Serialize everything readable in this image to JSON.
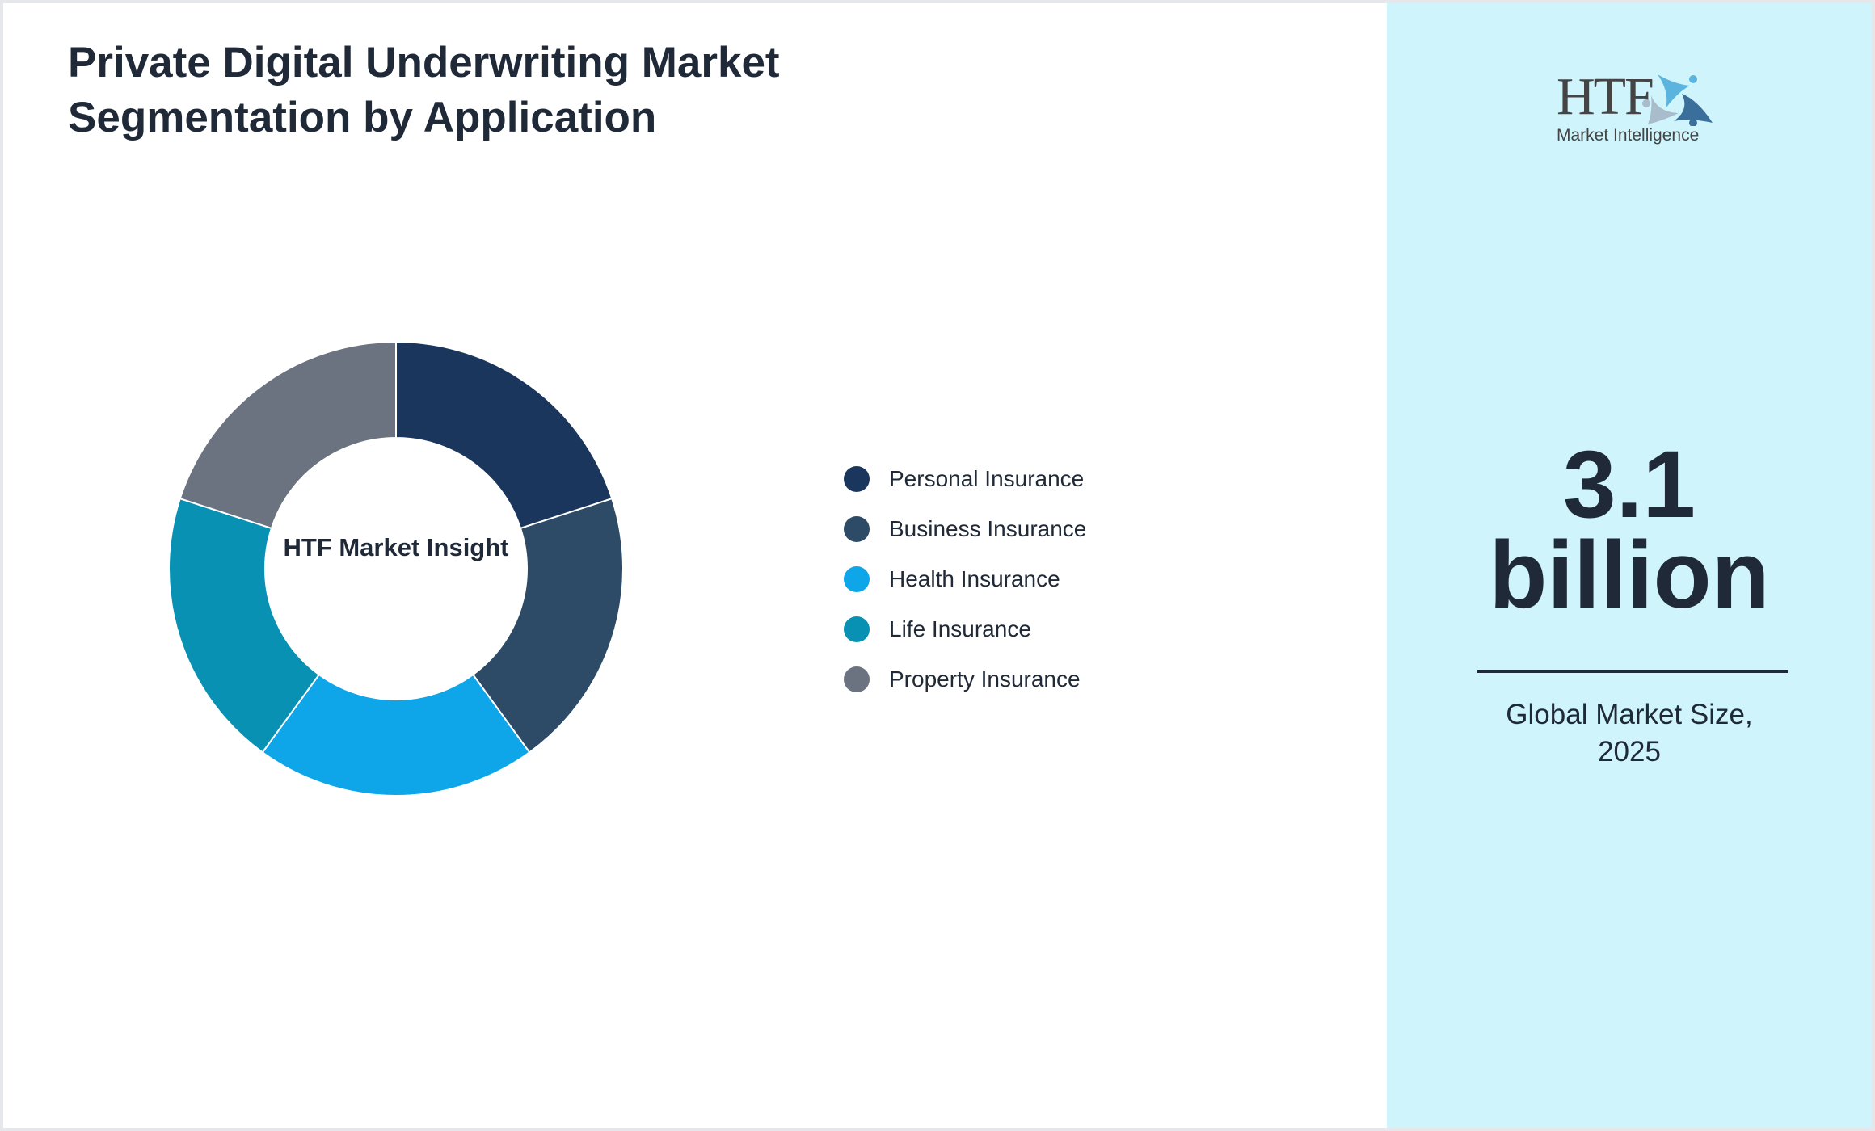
{
  "title": "Private Digital Underwriting Market Segmentation by Application",
  "chart_data": {
    "type": "pie",
    "donut": true,
    "center_label": "HTF Market Insight",
    "categories": [
      "Personal Insurance",
      "Business Insurance",
      "Health Insurance",
      "Life Insurance",
      "Property Insurance"
    ],
    "values": [
      20,
      20,
      20,
      20,
      20
    ],
    "colors": [
      "#1b365d",
      "#2d4a66",
      "#0ea5e9",
      "#0891b2",
      "#6b7280"
    ],
    "legend_position": "right"
  },
  "side": {
    "logo_text": "HTF",
    "logo_subtext": "Market Intelligence",
    "value_line1": "3.1",
    "value_line2": "billion",
    "caption_line1": "Global Market Size,",
    "caption_line2": "2025",
    "background": "#cff4fc"
  }
}
